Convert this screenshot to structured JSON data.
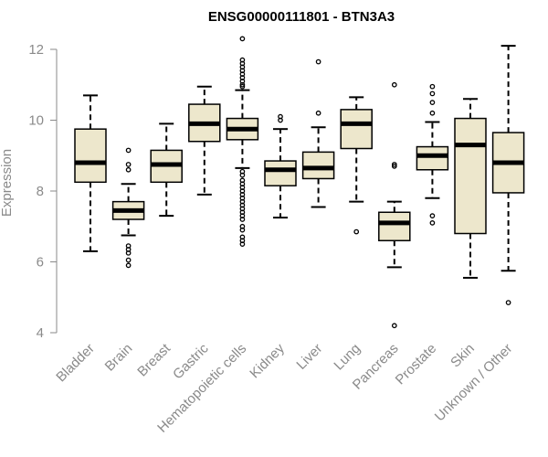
{
  "chart_data": {
    "type": "boxplot",
    "title": "ENSG00000111801 - BTN3A3",
    "ylabel": "Expression",
    "xlabel": "",
    "ylim": [
      4,
      12.5
    ],
    "yticks": [
      4,
      6,
      8,
      10,
      12
    ],
    "categories": [
      "Bladder",
      "Brain",
      "Breast",
      "Gastric",
      "Hematopoietic cells",
      "Kidney",
      "Liver",
      "Lung",
      "Pancreas",
      "Prostate",
      "Skin",
      "Unknown / Other"
    ],
    "boxes": [
      {
        "min": 6.3,
        "q1": 8.25,
        "median": 8.8,
        "q3": 9.75,
        "max": 10.7,
        "outliers": []
      },
      {
        "min": 6.75,
        "q1": 7.2,
        "median": 7.45,
        "q3": 7.7,
        "max": 8.2,
        "outliers": [
          9.15,
          8.75,
          8.6,
          6.45,
          6.35,
          6.25,
          6.05,
          5.9
        ]
      },
      {
        "min": 7.3,
        "q1": 8.25,
        "median": 8.75,
        "q3": 9.15,
        "max": 9.9,
        "outliers": []
      },
      {
        "min": 7.9,
        "q1": 9.4,
        "median": 9.9,
        "q3": 10.45,
        "max": 10.95,
        "outliers": []
      },
      {
        "min": 8.65,
        "q1": 9.45,
        "median": 9.75,
        "q3": 10.05,
        "max": 10.85,
        "outliers": [
          12.3,
          11.7,
          11.6,
          11.5,
          11.4,
          11.3,
          11.2,
          11.1,
          11.0,
          10.95,
          8.55,
          8.45,
          8.3,
          8.2,
          8.1,
          8.0,
          7.9,
          7.8,
          7.7,
          7.6,
          7.5,
          7.4,
          7.3,
          7.2,
          7.0,
          6.9,
          6.7,
          6.6,
          6.5
        ]
      },
      {
        "min": 7.25,
        "q1": 8.15,
        "median": 8.6,
        "q3": 8.85,
        "max": 9.75,
        "outliers": [
          10.1,
          10.0
        ]
      },
      {
        "min": 7.55,
        "q1": 8.35,
        "median": 8.65,
        "q3": 9.1,
        "max": 9.8,
        "outliers": [
          11.65,
          10.2
        ]
      },
      {
        "min": 7.7,
        "q1": 9.2,
        "median": 9.9,
        "q3": 10.3,
        "max": 10.65,
        "outliers": [
          6.85
        ]
      },
      {
        "min": 5.85,
        "q1": 6.6,
        "median": 7.1,
        "q3": 7.4,
        "max": 7.7,
        "outliers": [
          11.0,
          8.75,
          8.7,
          4.2
        ]
      },
      {
        "min": 7.8,
        "q1": 8.6,
        "median": 9.0,
        "q3": 9.25,
        "max": 9.95,
        "outliers": [
          10.95,
          10.75,
          10.5,
          10.2,
          7.3,
          7.1
        ]
      },
      {
        "min": 5.55,
        "q1": 6.8,
        "median": 9.3,
        "q3": 10.05,
        "max": 10.6,
        "outliers": []
      },
      {
        "min": 5.75,
        "q1": 7.95,
        "median": 8.8,
        "q3": 9.65,
        "max": 12.1,
        "outliers": [
          4.85
        ]
      }
    ],
    "colors": {
      "box_fill": "#ede7cc",
      "box_stroke": "#000000",
      "median": "#000000",
      "axis": "#8a8a8a",
      "text": "#8a8a8a",
      "title": "#000000"
    },
    "grid": false,
    "legend": "none"
  }
}
